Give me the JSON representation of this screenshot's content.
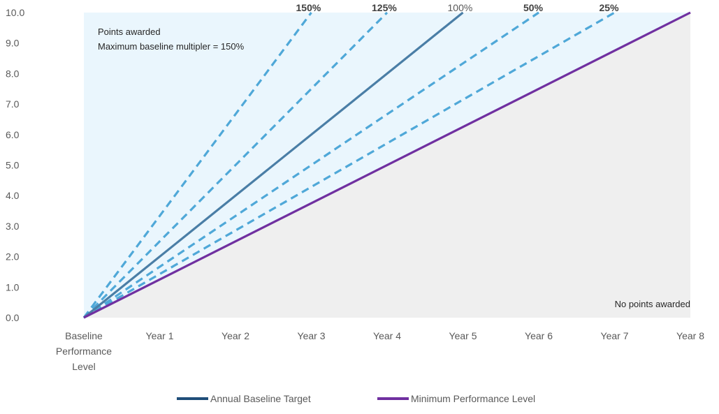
{
  "chart_data": {
    "type": "line",
    "title": "",
    "xlabel": "",
    "ylabel": "",
    "categories": [
      "Baseline\nPerformance\nLevel",
      "Year 1",
      "Year 2",
      "Year 3",
      "Year 4",
      "Year 5",
      "Year 6",
      "Year 7",
      "Year 8"
    ],
    "y_ticks": [
      "0.0",
      "1.0",
      "2.0",
      "3.0",
      "4.0",
      "5.0",
      "6.0",
      "7.0",
      "8.0",
      "9.0",
      "10.0"
    ],
    "ylim": [
      0,
      10
    ],
    "grid": false,
    "legend_position": "bottom",
    "regions": {
      "points_awarded": {
        "label_lines": [
          "Points awarded",
          "Maximum baseline multipler = 150%"
        ],
        "color": "#EAF6FD"
      },
      "no_points_awarded": {
        "label": "No points awarded",
        "color": "#EFEFEF"
      }
    },
    "series": [
      {
        "name": "Annual Baseline Target",
        "label": "100%",
        "style": "solid",
        "color": "#4A7EA6",
        "legend_color": "#1F4E79",
        "in_legend": true,
        "x": [
          0,
          5
        ],
        "values": [
          0,
          10
        ]
      },
      {
        "name": "Minimum Performance Level",
        "style": "solid",
        "color": "#7030A0",
        "in_legend": true,
        "x": [
          0,
          8
        ],
        "values": [
          0,
          10
        ]
      },
      {
        "label": "150%",
        "style": "dashed",
        "color": "#4FA8D8",
        "in_legend": false,
        "x": [
          0,
          3
        ],
        "values": [
          0,
          10
        ]
      },
      {
        "label": "125%",
        "style": "dashed",
        "color": "#4FA8D8",
        "in_legend": false,
        "x": [
          0,
          4
        ],
        "values": [
          0,
          10
        ]
      },
      {
        "label": "50%",
        "style": "dashed",
        "color": "#4FA8D8",
        "in_legend": false,
        "x": [
          0,
          6
        ],
        "values": [
          0,
          10
        ]
      },
      {
        "label": "25%",
        "style": "dashed",
        "color": "#4FA8D8",
        "in_legend": false,
        "x": [
          0,
          7
        ],
        "values": [
          0,
          10
        ]
      }
    ]
  }
}
